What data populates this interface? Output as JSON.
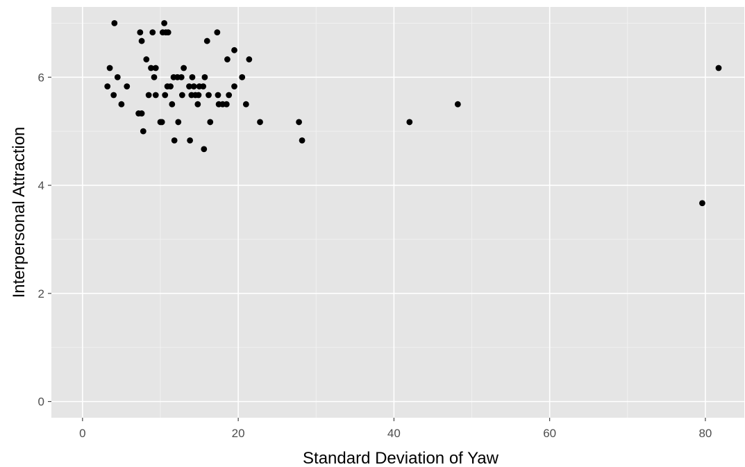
{
  "chart_data": {
    "type": "scatter",
    "title": "",
    "xlabel": "Standard Deviation of Yaw",
    "ylabel": "Interpersonal Attraction",
    "xlim": [
      -4,
      85
    ],
    "ylim": [
      -0.3,
      7.3
    ],
    "xticks": [
      0,
      20,
      40,
      60,
      80
    ],
    "yticks": [
      0,
      2,
      4,
      6
    ],
    "grid": true,
    "legend": "none",
    "colors": {
      "panel": "#e5e5e5",
      "grid": "#ffffff",
      "point": "#000000"
    },
    "series": [
      {
        "points": [
          [
            3.2,
            5.83
          ],
          [
            3.5,
            6.17
          ],
          [
            4.0,
            5.67
          ],
          [
            4.1,
            7.0
          ],
          [
            4.5,
            6.0
          ],
          [
            5.0,
            5.5
          ],
          [
            5.7,
            5.83
          ],
          [
            7.2,
            5.33
          ],
          [
            7.4,
            6.83
          ],
          [
            7.6,
            6.67
          ],
          [
            7.8,
            5.0
          ],
          [
            7.6,
            5.33
          ],
          [
            8.2,
            6.33
          ],
          [
            8.5,
            5.67
          ],
          [
            8.8,
            6.17
          ],
          [
            9.0,
            6.83
          ],
          [
            9.2,
            6.0
          ],
          [
            9.4,
            5.67
          ],
          [
            9.4,
            6.17
          ],
          [
            10.0,
            5.17
          ],
          [
            10.2,
            5.17
          ],
          [
            10.3,
            6.83
          ],
          [
            10.5,
            7.0
          ],
          [
            10.6,
            5.67
          ],
          [
            10.7,
            6.83
          ],
          [
            10.9,
            5.83
          ],
          [
            11.0,
            6.83
          ],
          [
            11.3,
            5.83
          ],
          [
            11.5,
            5.5
          ],
          [
            11.7,
            6.0
          ],
          [
            11.8,
            4.83
          ],
          [
            12.3,
            5.17
          ],
          [
            12.2,
            6.0
          ],
          [
            12.7,
            6.0
          ],
          [
            12.8,
            5.67
          ],
          [
            13.0,
            6.17
          ],
          [
            13.7,
            5.83
          ],
          [
            13.8,
            4.83
          ],
          [
            14.0,
            5.67
          ],
          [
            14.1,
            6.0
          ],
          [
            14.3,
            5.83
          ],
          [
            14.5,
            5.67
          ],
          [
            14.8,
            5.5
          ],
          [
            14.9,
            5.67
          ],
          [
            15.0,
            5.83
          ],
          [
            15.5,
            5.83
          ],
          [
            15.6,
            4.67
          ],
          [
            15.7,
            6.0
          ],
          [
            16.0,
            6.67
          ],
          [
            16.2,
            5.67
          ],
          [
            16.4,
            5.17
          ],
          [
            17.3,
            6.83
          ],
          [
            17.4,
            5.67
          ],
          [
            17.5,
            5.5
          ],
          [
            18.0,
            5.5
          ],
          [
            18.5,
            5.5
          ],
          [
            18.6,
            6.33
          ],
          [
            18.8,
            5.67
          ],
          [
            19.5,
            6.5
          ],
          [
            19.5,
            5.83
          ],
          [
            20.5,
            6.0
          ],
          [
            21.0,
            5.5
          ],
          [
            21.4,
            6.33
          ],
          [
            22.8,
            5.17
          ],
          [
            27.8,
            5.17
          ],
          [
            28.2,
            4.83
          ],
          [
            42.0,
            5.17
          ],
          [
            48.2,
            5.5
          ],
          [
            79.6,
            3.67
          ],
          [
            81.7,
            6.17
          ]
        ]
      }
    ]
  }
}
